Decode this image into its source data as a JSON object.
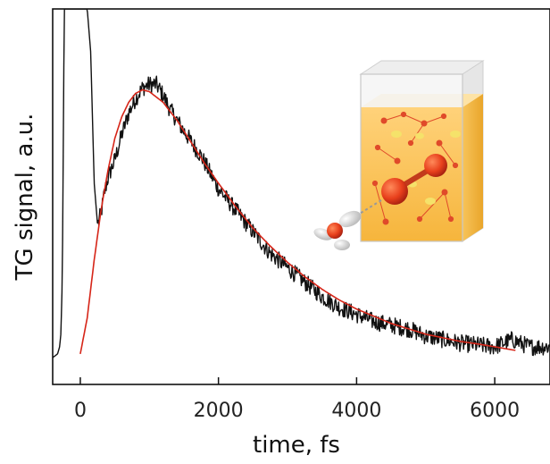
{
  "chart_data": {
    "type": "line",
    "title": "",
    "xlabel": "time, fs",
    "ylabel": "TG signal, a.u.",
    "xlim": [
      -400,
      6800
    ],
    "ylim": [
      0,
      1.0
    ],
    "x_ticks": [
      0,
      2000,
      4000,
      6000
    ],
    "x_tick_labels": [
      "0",
      "2000",
      "4000",
      "6000"
    ],
    "y_ticks": [],
    "grid": false,
    "legend": "none",
    "series": [
      {
        "color": "#111111",
        "x": [
          -400,
          -330,
          -300,
          -280,
          -260,
          -250,
          -240,
          -230,
          -220,
          -200,
          -150,
          -100,
          -50,
          0,
          50,
          100,
          150,
          200,
          250,
          300,
          350,
          400,
          500,
          600,
          700,
          800,
          900,
          1000,
          1100,
          1200,
          1300,
          1500,
          1750,
          2000,
          2250,
          2500,
          2750,
          3000,
          3250,
          3500,
          3750,
          4000,
          4250,
          4500,
          4750,
          5000,
          5250,
          5500,
          5750,
          6000,
          6250,
          6500,
          6800
        ],
        "y": [
          0.03,
          0.04,
          0.06,
          0.1,
          0.25,
          0.5,
          0.8,
          1.0,
          1.0,
          1.0,
          1.0,
          1.0,
          1.0,
          1.0,
          1.0,
          1.0,
          0.88,
          0.52,
          0.4,
          0.43,
          0.49,
          0.53,
          0.58,
          0.65,
          0.71,
          0.75,
          0.78,
          0.79,
          0.79,
          0.76,
          0.72,
          0.66,
          0.59,
          0.5,
          0.44,
          0.38,
          0.32,
          0.28,
          0.24,
          0.2,
          0.17,
          0.15,
          0.13,
          0.12,
          0.11,
          0.09,
          0.08,
          0.07,
          0.065,
          0.06,
          0.08,
          0.06,
          0.06
        ],
        "noise": 0.015
      },
      {
        "color": "#d62518",
        "x": [
          0,
          100,
          200,
          300,
          400,
          500,
          600,
          700,
          800,
          900,
          1000,
          1200,
          1400,
          1600,
          1800,
          2000,
          2250,
          2500,
          2750,
          3000,
          3250,
          3500,
          3750,
          4000,
          4250,
          4500,
          4750,
          5000,
          5250,
          5500,
          5750,
          6000,
          6300
        ],
        "y": [
          0.04,
          0.14,
          0.3,
          0.44,
          0.55,
          0.64,
          0.7,
          0.74,
          0.765,
          0.775,
          0.77,
          0.74,
          0.69,
          0.63,
          0.57,
          0.515,
          0.45,
          0.39,
          0.34,
          0.295,
          0.255,
          0.22,
          0.19,
          0.165,
          0.145,
          0.125,
          0.11,
          0.095,
          0.085,
          0.075,
          0.068,
          0.06,
          0.05
        ]
      }
    ]
  }
}
